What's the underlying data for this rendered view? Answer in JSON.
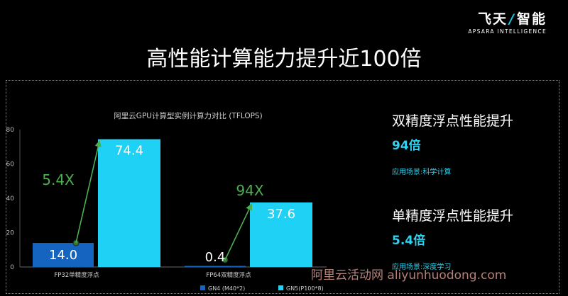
{
  "logo": {
    "cn_part1": "飞天",
    "cn_part2": "智能",
    "en": "APSARA INTELLIGENCE"
  },
  "page_title": "高性能计算能力提升近100倍",
  "side": [
    {
      "head": "双精度浮点性能提升",
      "value": "94倍",
      "note": "应用场景:科学计算"
    },
    {
      "head": "单精度浮点性能提升",
      "value": "5.4倍",
      "note": "应用场景:深度学习"
    }
  ],
  "watermark": "阿里云活动网 aliyunhuodong.com",
  "colors": {
    "dark_bar": "#1565c0",
    "light_bar": "#1fd2f5",
    "arrow": "#4caf50",
    "accent": "#2ed2ef"
  },
  "chart_data": {
    "type": "bar",
    "title": "阿里云GPU计算型实例计算力对比 (TFLOPS)",
    "categories": [
      "FP32单精度浮点",
      "FP64双精度浮点"
    ],
    "series": [
      {
        "name": "GN4 (M40*2)",
        "values": [
          14.0,
          0.4
        ]
      },
      {
        "name": "GN5(P100*8)",
        "values": [
          74.4,
          37.6
        ]
      }
    ],
    "data_labels": [
      [
        "14.0",
        "0.4"
      ],
      [
        "74.4",
        "37.6"
      ]
    ],
    "annotations": [
      "5.4X",
      "94X"
    ],
    "ylim": [
      0,
      80
    ],
    "yticks": [
      0,
      20,
      40,
      60,
      80
    ],
    "grid": false,
    "legend_position": "bottom"
  }
}
